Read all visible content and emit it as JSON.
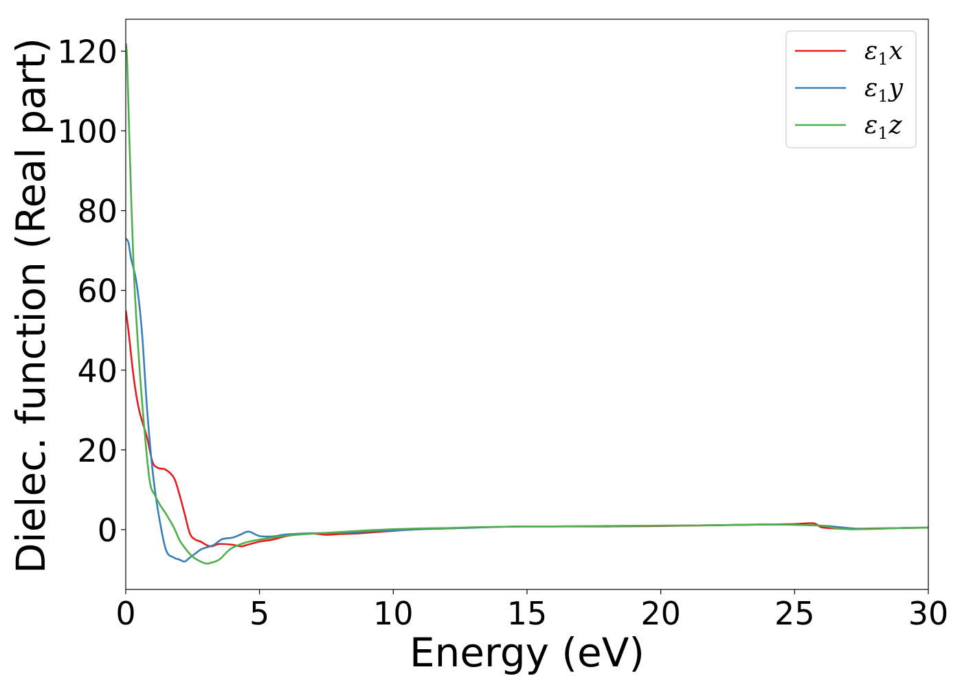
{
  "chart_data": {
    "type": "line",
    "title": "",
    "xlabel": "Energy (eV)",
    "ylabel": "Dielec. function (Real part)",
    "xlim": [
      0,
      30
    ],
    "ylim": [
      -15,
      128
    ],
    "xticks": [
      "0",
      "5",
      "10",
      "15",
      "20",
      "25",
      "30"
    ],
    "yticks": [
      "0",
      "20",
      "40",
      "60",
      "80",
      "100",
      "120"
    ],
    "grid": false,
    "legend_position": "top-right",
    "series": [
      {
        "name": "ε1x",
        "label_main": "ε",
        "label_sub": "1",
        "label_axis": "x",
        "color": "#e41a1c",
        "x": [
          0,
          0.1,
          0.3,
          0.5,
          0.8,
          1.0,
          1.2,
          1.5,
          1.8,
          2.0,
          2.2,
          2.4,
          2.6,
          2.8,
          3.0,
          3.2,
          3.5,
          4.0,
          4.3,
          4.5,
          5.0,
          5.5,
          6.0,
          6.5,
          7.0,
          7.5,
          8.0,
          8.5,
          9.0,
          10.0,
          11.0,
          12.0,
          13.0,
          14.0,
          15.0,
          16.0,
          17.0,
          18.0,
          20.0,
          22.0,
          24.0,
          25.0,
          25.7,
          26.0,
          26.5,
          27.0,
          28.0,
          29.0,
          30.0
        ],
        "y": [
          55,
          50,
          38,
          30,
          23,
          17,
          15.5,
          15,
          13,
          9,
          4,
          -1,
          -2.5,
          -3,
          -3.8,
          -4.2,
          -3.6,
          -3.8,
          -4.2,
          -3.9,
          -3.0,
          -2.5,
          -1.6,
          -1.2,
          -1.0,
          -1.3,
          -1.1,
          -1.0,
          -0.8,
          -0.3,
          0.1,
          0.3,
          0.5,
          0.7,
          0.8,
          0.8,
          0.8,
          0.8,
          0.9,
          1.1,
          1.3,
          1.4,
          1.6,
          0.6,
          0.3,
          0.2,
          0.3,
          0.4,
          0.5
        ]
      },
      {
        "name": "ε1y",
        "label_main": "ε",
        "label_sub": "1",
        "label_axis": "y",
        "color": "#377eb8",
        "x": [
          0,
          0.1,
          0.2,
          0.4,
          0.6,
          0.8,
          1.0,
          1.2,
          1.5,
          1.8,
          2.0,
          2.2,
          2.4,
          2.6,
          2.8,
          3.0,
          3.3,
          3.6,
          4.0,
          4.3,
          4.6,
          5.0,
          5.5,
          6.0,
          7.0,
          8.0,
          9.0,
          10.0,
          11.0,
          12.0,
          13.0,
          14.0,
          15.0,
          16.0,
          18.0,
          20.0,
          22.0,
          24.0,
          26.0,
          27.0,
          27.5,
          28.0,
          29.0,
          30.0
        ],
        "y": [
          73,
          72,
          68,
          62,
          50,
          30,
          15,
          5,
          -5,
          -7,
          -7.5,
          -8,
          -7,
          -6,
          -5,
          -4.5,
          -3.8,
          -2.4,
          -2.0,
          -1.2,
          -0.5,
          -1.6,
          -1.7,
          -1.2,
          -0.9,
          -0.8,
          -0.5,
          -0.2,
          0.1,
          0.3,
          0.5,
          0.7,
          0.8,
          0.8,
          0.9,
          1.0,
          1.1,
          1.3,
          1.0,
          0.4,
          0.2,
          0.2,
          0.4,
          0.5
        ]
      },
      {
        "name": "ε1z",
        "label_main": "ε",
        "label_sub": "1",
        "label_axis": "z",
        "color": "#4daf4a",
        "x": [
          0,
          0.05,
          0.15,
          0.3,
          0.5,
          0.7,
          0.9,
          1.1,
          1.3,
          1.5,
          1.8,
          2.0,
          2.2,
          2.5,
          2.8,
          3.0,
          3.2,
          3.5,
          3.8,
          4.0,
          4.5,
          5.0,
          5.5,
          6.0,
          7.0,
          8.0,
          9.0,
          10.0,
          11.0,
          12.0,
          13.0,
          14.0,
          15.0,
          16.0,
          18.0,
          20.0,
          22.0,
          24.0,
          25.0,
          26.0,
          26.5,
          27.0,
          28.0,
          29.0,
          30.0
        ],
        "y": [
          122,
          118,
          95,
          65,
          42,
          25,
          12,
          8.5,
          6,
          4,
          0.5,
          -2.5,
          -4.5,
          -6.8,
          -8,
          -8.5,
          -8.3,
          -7.5,
          -5.5,
          -4.5,
          -3.2,
          -2.5,
          -2.0,
          -1.5,
          -1.0,
          -0.6,
          -0.2,
          0.1,
          0.3,
          0.4,
          0.6,
          0.7,
          0.8,
          0.8,
          0.9,
          1.0,
          1.1,
          1.3,
          1.2,
          1.0,
          0.4,
          0.1,
          0.2,
          0.4,
          0.5
        ]
      }
    ]
  }
}
